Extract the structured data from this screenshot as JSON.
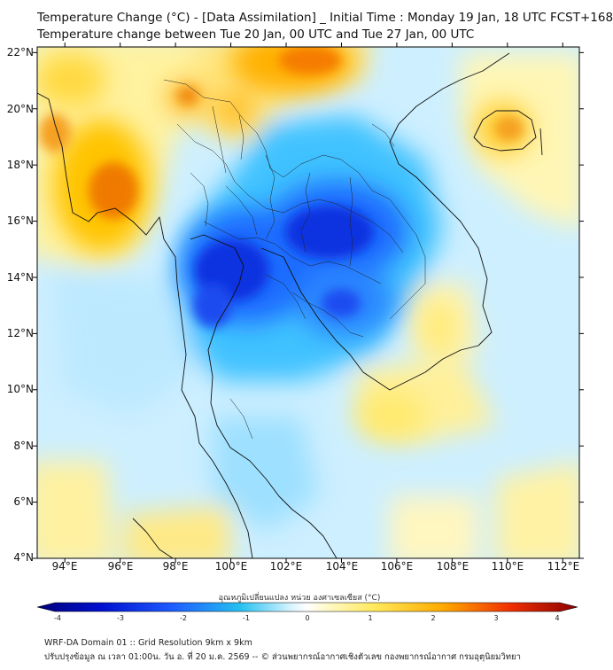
{
  "header": {
    "title_line1": "Temperature Change (°C) - [Data Assimilation] _ Initial Time : Monday 19 Jan, 18 UTC FCST+168",
    "title_line2": "Temperature change between Tue 20 Jan, 00 UTC and Tue 27 Jan, 00 UTC"
  },
  "map": {
    "lon_range": [
      93,
      112.6
    ],
    "lat_range": [
      4,
      22.2
    ],
    "lat_labels": [
      "22°N",
      "20°N",
      "18°N",
      "16°N",
      "14°N",
      "12°N",
      "10°N",
      "8°N",
      "6°N",
      "4°N"
    ],
    "lon_labels": [
      "94°E",
      "96°E",
      "98°E",
      "100°E",
      "102°E",
      "104°E",
      "106°E",
      "108°E",
      "110°E",
      "112°E"
    ],
    "field_features": [
      {
        "lon": 100.0,
        "lat": 13.8,
        "value": -3.0
      },
      {
        "lon": 103.2,
        "lat": 15.3,
        "value": -3.0
      },
      {
        "lon": 102.8,
        "lat": 13.2,
        "value": -2.5
      },
      {
        "lon": 96.0,
        "lat": 17.2,
        "value": 2.6
      },
      {
        "lon": 101.3,
        "lat": 21.8,
        "value": 2.0
      },
      {
        "lon": 98.5,
        "lat": 20.5,
        "value": 1.6
      },
      {
        "lon": 110.0,
        "lat": 19.6,
        "value": 1.6
      },
      {
        "lon": 106.5,
        "lat": 9.8,
        "value": 1.0
      },
      {
        "lon": 98.5,
        "lat": 4.5,
        "value": 1.0
      }
    ]
  },
  "colorbar": {
    "title": "อุณหภูมิเปลี่ยนแปลง หน่วย องศาเซลเซียส (°C)",
    "min": -4,
    "max": 4,
    "ticks": [
      "-4",
      "-3",
      "-2",
      "-1",
      "0",
      "1",
      "2",
      "3",
      "4"
    ]
  },
  "footer": {
    "line1": "WRF-DA Domain 01 :: Grid Resolution 9km x 9km",
    "line2": "ปรับปรุงข้อมูล ณ เวลา 01:00น. วัน อ. ที่ 20 ม.ค. 2569 -- © ส่วนพยากรณ์อากาศเชิงตัวเลข กองพยากรณ์อากาศ กรมอุตุนิยมวิทยา"
  }
}
